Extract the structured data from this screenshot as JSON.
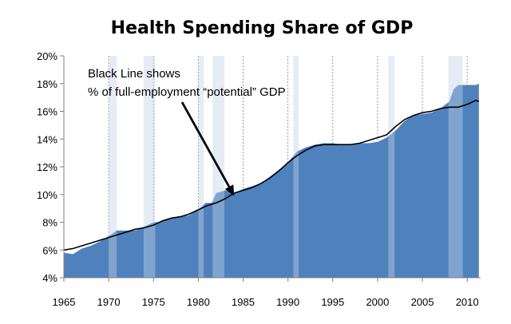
{
  "chart_data": {
    "type": "area",
    "title": "Health Spending Share of GDP",
    "xlabel": "",
    "ylabel": "",
    "xlim": [
      1965,
      2011.5
    ],
    "ylim": [
      4,
      20
    ],
    "x_ticks": [
      1965,
      1970,
      1975,
      1980,
      1985,
      1990,
      1995,
      2000,
      2005,
      2010
    ],
    "y_ticks": [
      4,
      6,
      8,
      10,
      12,
      14,
      16,
      18,
      20
    ],
    "y_tick_labels": [
      "4%",
      "6%",
      "8%",
      "10%",
      "12%",
      "14%",
      "16%",
      "18%",
      "20%"
    ],
    "grid": "vertical dashed lines at each 5-year tick",
    "recessions": [
      {
        "start": 1970.0,
        "end": 1970.9
      },
      {
        "start": 1973.9,
        "end": 1975.2
      },
      {
        "start": 1980.0,
        "end": 1980.6
      },
      {
        "start": 1981.6,
        "end": 1982.9
      },
      {
        "start": 1990.6,
        "end": 1991.2
      },
      {
        "start": 2001.2,
        "end": 2001.9
      },
      {
        "start": 2007.9,
        "end": 2009.5
      }
    ],
    "colors": {
      "area": "#4f81bd",
      "recession_band": "#dbe5f1",
      "line": "#000000",
      "grid": "#7f7f7f"
    },
    "series": [
      {
        "values": [
          [
            1965.0,
            5.8
          ],
          [
            1966.0,
            5.7
          ],
          [
            1967.0,
            6.1
          ],
          [
            1968.0,
            6.3
          ],
          [
            1969.0,
            6.6
          ],
          [
            1970.0,
            7.0
          ],
          [
            1970.9,
            7.4
          ],
          [
            1971.5,
            7.4
          ],
          [
            1972.0,
            7.4
          ],
          [
            1973.0,
            7.4
          ],
          [
            1974.0,
            7.7
          ],
          [
            1975.0,
            8.0
          ],
          [
            1975.5,
            8.0
          ],
          [
            1976.0,
            8.1
          ],
          [
            1977.0,
            8.3
          ],
          [
            1978.0,
            8.4
          ],
          [
            1979.0,
            8.5
          ],
          [
            1980.0,
            8.9
          ],
          [
            1980.8,
            9.4
          ],
          [
            1981.5,
            9.4
          ],
          [
            1982.0,
            10.1
          ],
          [
            1983.0,
            10.3
          ],
          [
            1984.0,
            10.1
          ],
          [
            1985.0,
            10.4
          ],
          [
            1986.0,
            10.6
          ],
          [
            1987.0,
            10.8
          ],
          [
            1988.0,
            11.3
          ],
          [
            1989.0,
            11.8
          ],
          [
            1990.0,
            12.3
          ],
          [
            1991.0,
            13.1
          ],
          [
            1992.0,
            13.4
          ],
          [
            1993.0,
            13.6
          ],
          [
            1994.0,
            13.7
          ],
          [
            1995.0,
            13.7
          ],
          [
            1996.0,
            13.6
          ],
          [
            1997.0,
            13.6
          ],
          [
            1998.0,
            13.7
          ],
          [
            1999.0,
            13.7
          ],
          [
            2000.0,
            13.8
          ],
          [
            2001.0,
            14.1
          ],
          [
            2002.0,
            14.6
          ],
          [
            2003.0,
            15.3
          ],
          [
            2004.0,
            15.7
          ],
          [
            2005.0,
            15.8
          ],
          [
            2006.0,
            15.9
          ],
          [
            2007.0,
            16.2
          ],
          [
            2008.0,
            16.7
          ],
          [
            2008.5,
            17.6
          ],
          [
            2009.0,
            17.9
          ],
          [
            2010.0,
            17.9
          ],
          [
            2011.0,
            17.9
          ],
          [
            2011.3,
            18.0
          ]
        ]
      },
      {
        "values": [
          [
            1965.0,
            6.0
          ],
          [
            1966.0,
            6.1
          ],
          [
            1967.0,
            6.3
          ],
          [
            1968.0,
            6.5
          ],
          [
            1969.0,
            6.7
          ],
          [
            1970.0,
            6.9
          ],
          [
            1971.0,
            7.1
          ],
          [
            1972.0,
            7.3
          ],
          [
            1973.0,
            7.5
          ],
          [
            1974.0,
            7.6
          ],
          [
            1975.0,
            7.8
          ],
          [
            1976.0,
            8.1
          ],
          [
            1977.0,
            8.3
          ],
          [
            1978.0,
            8.4
          ],
          [
            1979.0,
            8.6
          ],
          [
            1980.0,
            8.9
          ],
          [
            1981.0,
            9.2
          ],
          [
            1982.0,
            9.4
          ],
          [
            1983.0,
            9.7
          ],
          [
            1984.0,
            10.1
          ],
          [
            1985.0,
            10.3
          ],
          [
            1986.0,
            10.5
          ],
          [
            1987.0,
            10.8
          ],
          [
            1988.0,
            11.2
          ],
          [
            1989.0,
            11.7
          ],
          [
            1990.0,
            12.3
          ],
          [
            1991.0,
            12.8
          ],
          [
            1992.0,
            13.2
          ],
          [
            1993.0,
            13.5
          ],
          [
            1994.0,
            13.6
          ],
          [
            1995.0,
            13.6
          ],
          [
            1996.0,
            13.6
          ],
          [
            1997.0,
            13.6
          ],
          [
            1998.0,
            13.7
          ],
          [
            1999.0,
            13.9
          ],
          [
            2000.0,
            14.1
          ],
          [
            2001.0,
            14.3
          ],
          [
            2002.0,
            14.9
          ],
          [
            2003.0,
            15.4
          ],
          [
            2004.0,
            15.7
          ],
          [
            2005.0,
            15.9
          ],
          [
            2006.0,
            16.0
          ],
          [
            2007.0,
            16.2
          ],
          [
            2008.0,
            16.3
          ],
          [
            2009.0,
            16.3
          ],
          [
            2010.0,
            16.5
          ],
          [
            2011.0,
            16.8
          ],
          [
            2011.3,
            16.7
          ]
        ]
      }
    ],
    "annotation": {
      "lines": [
        "Black Line shows",
        "% of full-employment “potential” GDP"
      ],
      "arrow_target": [
        1984.0,
        9.9
      ]
    }
  }
}
